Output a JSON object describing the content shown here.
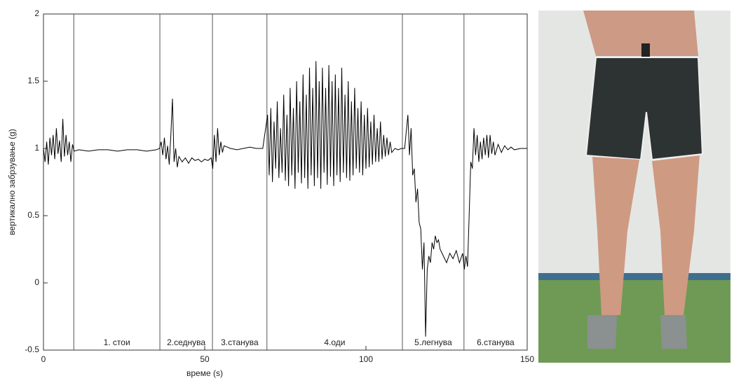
{
  "chart_data": {
    "type": "line",
    "x_label": "време (s)",
    "y_label": "вертикално забрзување (g)",
    "xlim": [
      0,
      150
    ],
    "xticks": [
      0,
      50,
      100,
      150
    ],
    "ylim": [
      -0.5,
      2
    ],
    "yticks": [
      -0.5,
      0,
      0.5,
      1,
      1.5,
      2
    ],
    "color": "#000000",
    "dividers": [
      9.4,
      36.1,
      52.4,
      69.3,
      111.3,
      130.4
    ],
    "segments": [
      "1. стои",
      "2.седнува",
      "3.станува",
      "4.оди",
      "5.легнува",
      "6.станува"
    ],
    "x": [
      0,
      0.5,
      1,
      1.5,
      2,
      2.5,
      3,
      3.5,
      4,
      4.5,
      5,
      5.5,
      6,
      6.5,
      7,
      7.5,
      8,
      8.5,
      9,
      9.5,
      11,
      14,
      17,
      20,
      23,
      26,
      29,
      32,
      35,
      36,
      36.5,
      37,
      37.5,
      38,
      38.5,
      39,
      39.5,
      40,
      40.5,
      41,
      41.5,
      42,
      43,
      44,
      45,
      46,
      47,
      48,
      49,
      50,
      51,
      52,
      52.5,
      53,
      53.5,
      54,
      54.5,
      55,
      55.5,
      56,
      58,
      60,
      62,
      64,
      66,
      68,
      69.5,
      70,
      70.5,
      71,
      71.5,
      72,
      72.5,
      73,
      73.5,
      74,
      74.5,
      75,
      75.5,
      76,
      76.5,
      77,
      77.5,
      78,
      78.5,
      79,
      79.5,
      80,
      80.5,
      81,
      81.5,
      82,
      82.5,
      83,
      83.5,
      84,
      84.5,
      85,
      85.5,
      86,
      86.5,
      87,
      87.5,
      88,
      88.5,
      89,
      89.5,
      90,
      90.5,
      91,
      91.5,
      92,
      92.5,
      93,
      93.5,
      94,
      94.5,
      95,
      95.5,
      96,
      96.5,
      97,
      97.5,
      98,
      98.5,
      99,
      99.5,
      100,
      100.5,
      101,
      101.5,
      102,
      102.5,
      103,
      103.5,
      104,
      104.5,
      105,
      105.5,
      106,
      106.5,
      107,
      107.5,
      108,
      109,
      110,
      111,
      112,
      113,
      113.5,
      114,
      114.5,
      115,
      115.5,
      116,
      116.5,
      117,
      117.5,
      118,
      118.5,
      119,
      119.5,
      120,
      120.5,
      121,
      121.5,
      122,
      122.5,
      123,
      124,
      125,
      126,
      127,
      128,
      129,
      130,
      130.5,
      131,
      131.5,
      132,
      132.5,
      133,
      133.5,
      134,
      134.5,
      135,
      135.5,
      136,
      136.5,
      137,
      137.5,
      138,
      138.5,
      139,
      139.5,
      140,
      141,
      142,
      143,
      144,
      145,
      146,
      148,
      150
    ],
    "values": [
      1,
      0.9,
      1.05,
      0.88,
      1.08,
      0.95,
      1.1,
      0.92,
      1.15,
      0.96,
      1.06,
      0.9,
      1.22,
      0.94,
      1.1,
      0.95,
      1.05,
      0.9,
      1.03,
      0.98,
      0.99,
      0.98,
      0.99,
      0.99,
      0.98,
      0.99,
      0.99,
      0.98,
      0.99,
      1.0,
      1.05,
      0.95,
      1.08,
      0.92,
      1.02,
      0.88,
      1.1,
      1.37,
      0.9,
      1.0,
      0.86,
      0.94,
      0.9,
      0.93,
      0.89,
      0.93,
      0.91,
      0.92,
      0.9,
      0.92,
      0.91,
      0.93,
      0.85,
      1.1,
      0.9,
      1.15,
      0.95,
      1.05,
      0.97,
      1.02,
      1.0,
      0.99,
      1.0,
      1.01,
      1.0,
      1.0,
      1.25,
      0.8,
      1.3,
      0.75,
      1.2,
      0.85,
      1.35,
      0.78,
      1.15,
      0.82,
      1.4,
      0.76,
      1.25,
      0.72,
      1.45,
      0.8,
      1.3,
      0.7,
      1.5,
      0.82,
      1.35,
      0.74,
      1.55,
      0.78,
      1.4,
      0.7,
      1.6,
      0.8,
      1.45,
      0.72,
      1.65,
      0.78,
      1.5,
      0.7,
      1.6,
      0.82,
      1.45,
      0.73,
      1.62,
      0.79,
      1.5,
      0.72,
      1.55,
      0.8,
      1.45,
      0.75,
      1.6,
      0.82,
      1.4,
      0.78,
      1.5,
      0.76,
      1.35,
      0.8,
      1.45,
      0.85,
      1.3,
      0.82,
      1.35,
      0.8,
      1.25,
      0.85,
      1.3,
      0.86,
      1.2,
      0.88,
      1.25,
      0.9,
      1.15,
      0.9,
      1.2,
      0.92,
      1.1,
      0.94,
      1.08,
      0.95,
      1.05,
      0.97,
      1.0,
      0.99,
      1.0,
      1.0,
      1.25,
      0.95,
      1.15,
      0.8,
      0.85,
      0.6,
      0.7,
      0.45,
      0.4,
      0.1,
      0.3,
      -0.4,
      0.1,
      0.2,
      0.15,
      0.3,
      0.25,
      0.35,
      0.3,
      0.32,
      0.25,
      0.2,
      0.15,
      0.22,
      0.18,
      0.24,
      0.15,
      0.22,
      0.1,
      0.2,
      0.12,
      0.5,
      0.9,
      0.85,
      1.15,
      0.95,
      1.1,
      0.9,
      1.05,
      0.92,
      1.08,
      0.95,
      1.1,
      0.93,
      1.1,
      0.96,
      1.05,
      0.95,
      1.03,
      0.97,
      1.02,
      0.99,
      1.01,
      0.99,
      1.0,
      1.0
    ]
  }
}
